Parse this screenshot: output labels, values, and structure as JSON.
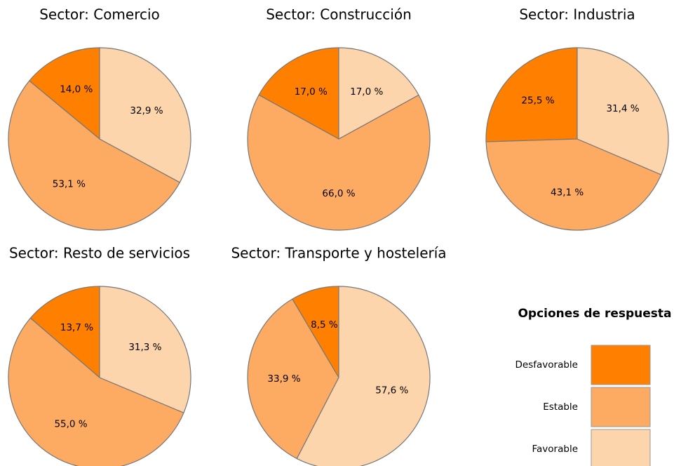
{
  "chart_data": [
    {
      "type": "pie",
      "title": "Sector: Comercio",
      "categories": [
        "Desfavorable",
        "Estable",
        "Favorable"
      ],
      "values": [
        14.0,
        53.1,
        32.9
      ],
      "value_labels": [
        "14,0 %",
        "53,1 %",
        "32,9 %"
      ],
      "colors": [
        "#ff7f00",
        "#fdaa63",
        "#fdd5ac"
      ]
    },
    {
      "type": "pie",
      "title": "Sector: Construcción",
      "categories": [
        "Desfavorable",
        "Estable",
        "Favorable"
      ],
      "values": [
        17.0,
        66.0,
        17.0
      ],
      "value_labels": [
        "17,0 %",
        "66,0 %",
        "17,0 %"
      ],
      "colors": [
        "#ff7f00",
        "#fdaa63",
        "#fdd5ac"
      ]
    },
    {
      "type": "pie",
      "title": "Sector: Industria",
      "categories": [
        "Desfavorable",
        "Estable",
        "Favorable"
      ],
      "values": [
        25.5,
        43.1,
        31.4
      ],
      "value_labels": [
        "25,5 %",
        "43,1 %",
        "31,4 %"
      ],
      "colors": [
        "#ff7f00",
        "#fdaa63",
        "#fdd5ac"
      ]
    },
    {
      "type": "pie",
      "title": "Sector: Resto de servicios",
      "categories": [
        "Desfavorable",
        "Estable",
        "Favorable"
      ],
      "values": [
        13.7,
        55.0,
        31.3
      ],
      "value_labels": [
        "13,7 %",
        "55,0 %",
        "31,3 %"
      ],
      "colors": [
        "#ff7f00",
        "#fdaa63",
        "#fdd5ac"
      ]
    },
    {
      "type": "pie",
      "title": "Sector: Transporte y hostelería",
      "categories": [
        "Desfavorable",
        "Estable",
        "Favorable"
      ],
      "values": [
        8.5,
        33.9,
        57.6
      ],
      "value_labels": [
        "8,5 %",
        "33,9 %",
        "57,6 %"
      ],
      "colors": [
        "#ff7f00",
        "#fdaa63",
        "#fdd5ac"
      ]
    }
  ],
  "legend_title": "Opciones de respuesta"
}
